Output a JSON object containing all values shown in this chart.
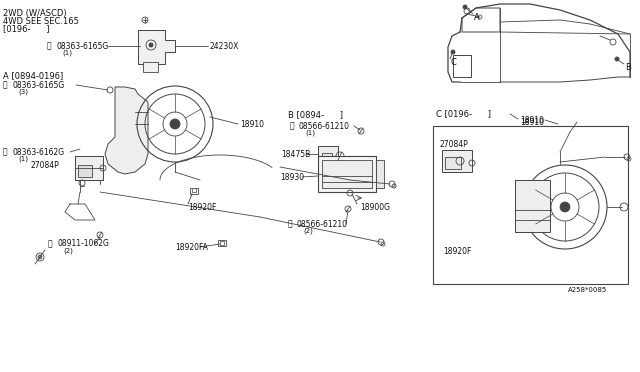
{
  "bg_color": "#ffffff",
  "line_color": "#444444",
  "text_color": "#111111",
  "fig_width": 6.4,
  "fig_height": 3.72,
  "dpi": 100,
  "diagram_number": "A258*0085",
  "top_line1": "2WD (W/ASCD)",
  "top_line2": "4WD SEE SEC.165",
  "top_line3": "[0196-      ]"
}
